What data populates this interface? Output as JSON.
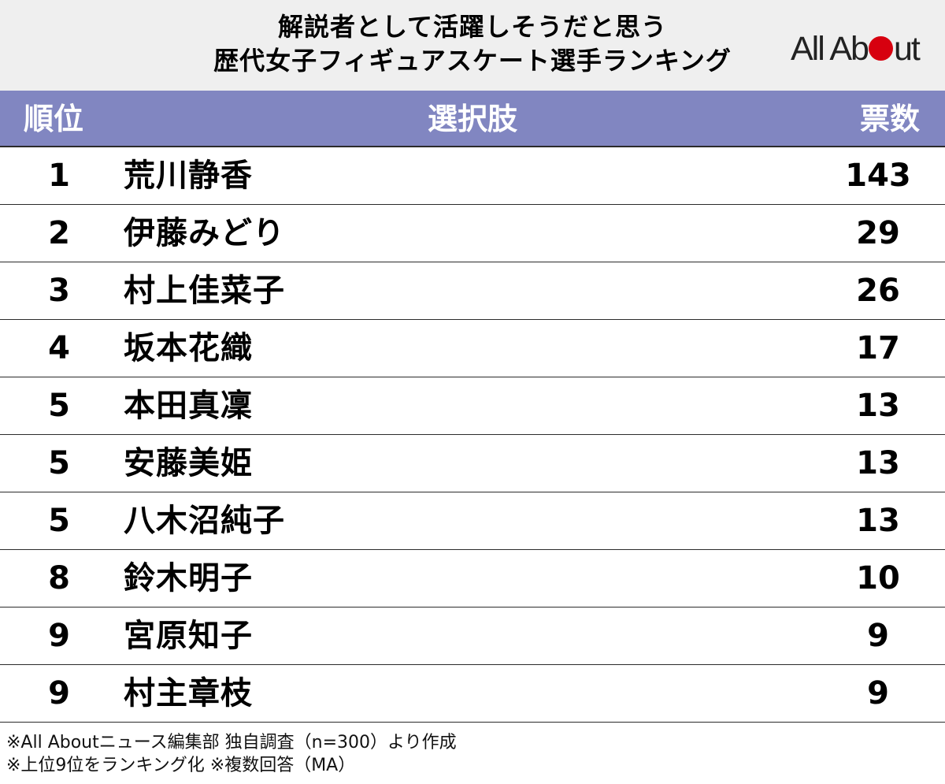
{
  "header": {
    "title_line1": "解説者として活躍しそうだと思う",
    "title_line2": "歴代女子フィギュアスケート選手ランキング",
    "logo_prefix": "All Ab",
    "logo_suffix": "ut"
  },
  "table": {
    "columns": [
      "順位",
      "選択肢",
      "票数"
    ]
  },
  "chart_data": {
    "type": "table",
    "title": "解説者として活躍しそうだと思う 歴代女子フィギュアスケート選手ランキング",
    "columns": [
      "順位",
      "選択肢",
      "票数"
    ],
    "rows": [
      {
        "rank": "1",
        "name": "荒川静香",
        "votes": "143"
      },
      {
        "rank": "2",
        "name": "伊藤みどり",
        "votes": "29"
      },
      {
        "rank": "3",
        "name": "村上佳菜子",
        "votes": "26"
      },
      {
        "rank": "4",
        "name": "坂本花織",
        "votes": "17"
      },
      {
        "rank": "5",
        "name": "本田真凜",
        "votes": "13"
      },
      {
        "rank": "5",
        "name": "安藤美姫",
        "votes": "13"
      },
      {
        "rank": "5",
        "name": "八木沼純子",
        "votes": "13"
      },
      {
        "rank": "8",
        "name": "鈴木明子",
        "votes": "10"
      },
      {
        "rank": "9",
        "name": "宮原知子",
        "votes": "9"
      },
      {
        "rank": "9",
        "name": "村主章枝",
        "votes": "9"
      }
    ]
  },
  "notes": {
    "line1": "※All Aboutニュース編集部 独自調査（n=300）より作成",
    "line2": "※上位9位をランキング化 ※複数回答（MA）"
  },
  "colors": {
    "header_bg": "#efefef",
    "table_header_bg": "#8186c1",
    "logo_dot": "#d7000f"
  }
}
